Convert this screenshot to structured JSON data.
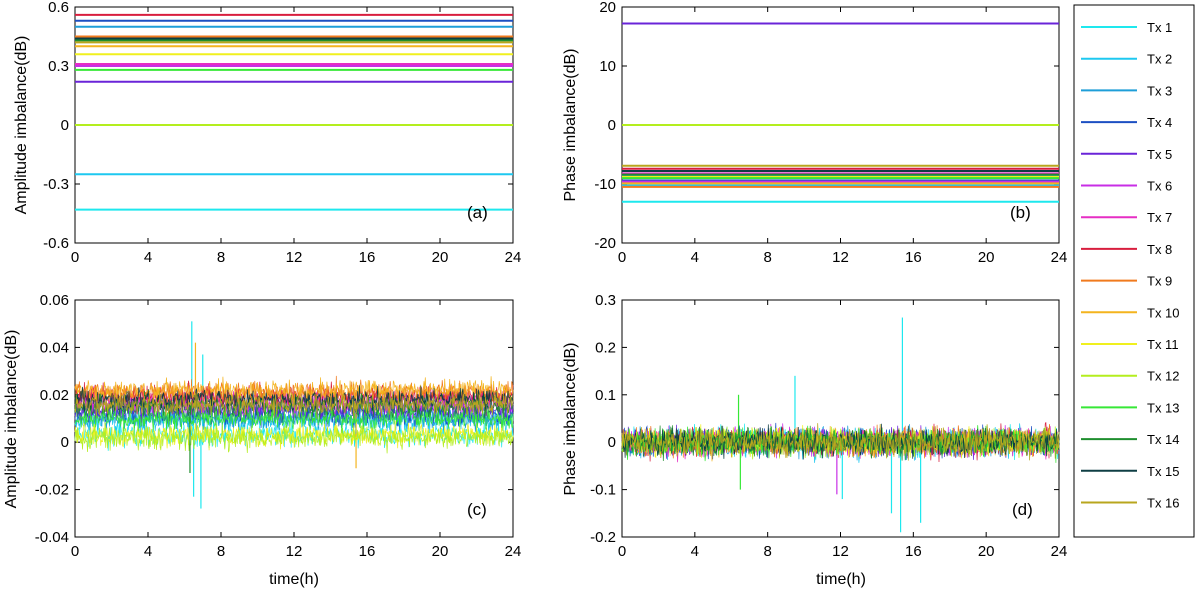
{
  "time_label": "time(h)",
  "legend": {
    "placement": "right",
    "entries": [
      {
        "label": "Tx 1",
        "color": "#1ee8ee"
      },
      {
        "label": "Tx 2",
        "color": "#1ec8f0"
      },
      {
        "label": "Tx 3",
        "color": "#1e9ed8"
      },
      {
        "label": "Tx 4",
        "color": "#1c4fc2"
      },
      {
        "label": "Tx 5",
        "color": "#6a24d8"
      },
      {
        "label": "Tx 6",
        "color": "#c82ee6"
      },
      {
        "label": "Tx 7",
        "color": "#e62ec4"
      },
      {
        "label": "Tx 8",
        "color": "#d81e3e"
      },
      {
        "label": "Tx 9",
        "color": "#f07a1e"
      },
      {
        "label": "Tx 10",
        "color": "#f4b41e"
      },
      {
        "label": "Tx 11",
        "color": "#f0f01e"
      },
      {
        "label": "Tx 12",
        "color": "#b4ee1e"
      },
      {
        "label": "Tx 13",
        "color": "#36e836"
      },
      {
        "label": "Tx 14",
        "color": "#1e8e2e"
      },
      {
        "label": "Tx 15",
        "color": "#0e3e44"
      },
      {
        "label": "Tx 16",
        "color": "#b8a61e"
      }
    ]
  },
  "chart_data": [
    {
      "id": "a",
      "panel_label": "(a)",
      "type": "line",
      "xlabel": "",
      "ylabel": "Amplitude imbalance(dB)",
      "xlim": [
        0,
        24
      ],
      "ylim": [
        -0.6,
        0.6
      ],
      "xticks": [
        0,
        4,
        8,
        12,
        16,
        20,
        24
      ],
      "yticks": [
        -0.6,
        -0.3,
        0,
        0.3,
        0.6
      ],
      "ytick_labels": [
        "-0.6",
        "-0.3",
        "0",
        "0.3",
        "0.6"
      ],
      "noise": 0,
      "series": [
        {
          "name": "Tx 1",
          "level": -0.43
        },
        {
          "name": "Tx 2",
          "level": -0.25
        },
        {
          "name": "Tx 3",
          "level": 0.5
        },
        {
          "name": "Tx 4",
          "level": 0.53
        },
        {
          "name": "Tx 5",
          "level": 0.22
        },
        {
          "name": "Tx 6",
          "level": 0.3
        },
        {
          "name": "Tx 7",
          "level": 0.31
        },
        {
          "name": "Tx 8",
          "level": 0.56
        },
        {
          "name": "Tx 9",
          "level": 0.45
        },
        {
          "name": "Tx 10",
          "level": 0.4
        },
        {
          "name": "Tx 11",
          "level": 0.36
        },
        {
          "name": "Tx 12",
          "level": 0.0
        },
        {
          "name": "Tx 13",
          "level": 0.28
        },
        {
          "name": "Tx 14",
          "level": 0.43
        },
        {
          "name": "Tx 15",
          "level": 0.44
        },
        {
          "name": "Tx 16",
          "level": 0.42
        }
      ]
    },
    {
      "id": "b",
      "panel_label": "(b)",
      "type": "line",
      "xlabel": "",
      "ylabel": "Phase imbalance(dB)",
      "xlim": [
        0,
        24
      ],
      "ylim": [
        -20,
        20
      ],
      "xticks": [
        0,
        4,
        8,
        12,
        16,
        20,
        24
      ],
      "yticks": [
        -20,
        -10,
        0,
        10,
        20
      ],
      "ytick_labels": [
        "-20",
        "-10",
        "0",
        "10",
        "20"
      ],
      "noise": 0,
      "series": [
        {
          "name": "Tx 1",
          "level": -13.0
        },
        {
          "name": "Tx 2",
          "level": -10.2
        },
        {
          "name": "Tx 3",
          "level": -8.6
        },
        {
          "name": "Tx 4",
          "level": -9.4
        },
        {
          "name": "Tx 5",
          "level": 17.2
        },
        {
          "name": "Tx 6",
          "level": -9.6
        },
        {
          "name": "Tx 7",
          "level": -8.2
        },
        {
          "name": "Tx 8",
          "level": -7.4
        },
        {
          "name": "Tx 9",
          "level": -10.5
        },
        {
          "name": "Tx 10",
          "level": -9.9
        },
        {
          "name": "Tx 11",
          "level": -8.8
        },
        {
          "name": "Tx 12",
          "level": 0.0
        },
        {
          "name": "Tx 13",
          "level": -9.0
        },
        {
          "name": "Tx 14",
          "level": -8.4
        },
        {
          "name": "Tx 15",
          "level": -7.8
        },
        {
          "name": "Tx 16",
          "level": -6.9
        }
      ]
    },
    {
      "id": "c",
      "panel_label": "(c)",
      "type": "line",
      "xlabel": "time(h)",
      "ylabel": "Amplitude imbalance(dB)",
      "xlim": [
        0,
        24
      ],
      "ylim": [
        -0.04,
        0.06
      ],
      "xticks": [
        0,
        4,
        8,
        12,
        16,
        20,
        24
      ],
      "yticks": [
        -0.04,
        -0.02,
        0,
        0.02,
        0.04,
        0.06
      ],
      "ytick_labels": [
        "-0.04",
        "-0.02",
        "0",
        "0.02",
        "0.04",
        "0.06"
      ],
      "noise": 0.0035,
      "series": [
        {
          "name": "Tx 1",
          "level": 0.003
        },
        {
          "name": "Tx 2",
          "level": 0.009
        },
        {
          "name": "Tx 3",
          "level": 0.01
        },
        {
          "name": "Tx 4",
          "level": 0.012
        },
        {
          "name": "Tx 5",
          "level": 0.014
        },
        {
          "name": "Tx 6",
          "level": 0.016
        },
        {
          "name": "Tx 7",
          "level": 0.018
        },
        {
          "name": "Tx 8",
          "level": 0.02
        },
        {
          "name": "Tx 9",
          "level": 0.021
        },
        {
          "name": "Tx 10",
          "level": 0.022
        },
        {
          "name": "Tx 11",
          "level": 0.003
        },
        {
          "name": "Tx 12",
          "level": 0.002
        },
        {
          "name": "Tx 13",
          "level": 0.01
        },
        {
          "name": "Tx 14",
          "level": 0.015
        },
        {
          "name": "Tx 15",
          "level": 0.018
        },
        {
          "name": "Tx 16",
          "level": 0.016
        }
      ],
      "spikes": [
        {
          "series": "Tx 1",
          "x": 6.4,
          "y": 0.051
        },
        {
          "series": "Tx 1",
          "x": 6.5,
          "y": -0.023
        },
        {
          "series": "Tx 1",
          "x": 6.9,
          "y": -0.028
        },
        {
          "series": "Tx 1",
          "x": 7.0,
          "y": 0.037
        },
        {
          "series": "Tx 14",
          "x": 6.3,
          "y": -0.013
        },
        {
          "series": "Tx 10",
          "x": 6.6,
          "y": 0.042
        },
        {
          "series": "Tx 10",
          "x": 15.4,
          "y": -0.011
        }
      ]
    },
    {
      "id": "d",
      "panel_label": "(d)",
      "type": "line",
      "xlabel": "time(h)",
      "ylabel": "Phase imbalance(dB)",
      "xlim": [
        0,
        24
      ],
      "ylim": [
        -0.2,
        0.3
      ],
      "xticks": [
        0,
        4,
        8,
        12,
        16,
        20,
        24
      ],
      "yticks": [
        -0.2,
        -0.1,
        0,
        0.1,
        0.2,
        0.3
      ],
      "ytick_labels": [
        "-0.2",
        "-0.1",
        "0",
        "0.1",
        "0.2",
        "0.3"
      ],
      "noise": 0.022,
      "series": [
        {
          "name": "Tx 1",
          "level": 0.0
        },
        {
          "name": "Tx 2",
          "level": 0.0
        },
        {
          "name": "Tx 3",
          "level": 0.0
        },
        {
          "name": "Tx 4",
          "level": 0.0
        },
        {
          "name": "Tx 5",
          "level": 0.0
        },
        {
          "name": "Tx 6",
          "level": 0.0
        },
        {
          "name": "Tx 7",
          "level": 0.0
        },
        {
          "name": "Tx 8",
          "level": 0.0
        },
        {
          "name": "Tx 9",
          "level": 0.0
        },
        {
          "name": "Tx 10",
          "level": 0.0
        },
        {
          "name": "Tx 11",
          "level": 0.0
        },
        {
          "name": "Tx 12",
          "level": 0.0
        },
        {
          "name": "Tx 13",
          "level": 0.0
        },
        {
          "name": "Tx 14",
          "level": 0.0
        },
        {
          "name": "Tx 15",
          "level": 0.0
        },
        {
          "name": "Tx 16",
          "level": 0.0
        }
      ],
      "spikes": [
        {
          "series": "Tx 1",
          "x": 15.4,
          "y": 0.263
        },
        {
          "series": "Tx 1",
          "x": 15.3,
          "y": -0.19
        },
        {
          "series": "Tx 1",
          "x": 9.5,
          "y": 0.14
        },
        {
          "series": "Tx 1",
          "x": 16.4,
          "y": -0.17
        },
        {
          "series": "Tx 1",
          "x": 14.8,
          "y": -0.15
        },
        {
          "series": "Tx 1",
          "x": 12.1,
          "y": -0.12
        },
        {
          "series": "Tx 13",
          "x": 6.4,
          "y": 0.1
        },
        {
          "series": "Tx 13",
          "x": 6.5,
          "y": -0.1
        },
        {
          "series": "Tx 6",
          "x": 11.8,
          "y": -0.11
        }
      ]
    }
  ]
}
